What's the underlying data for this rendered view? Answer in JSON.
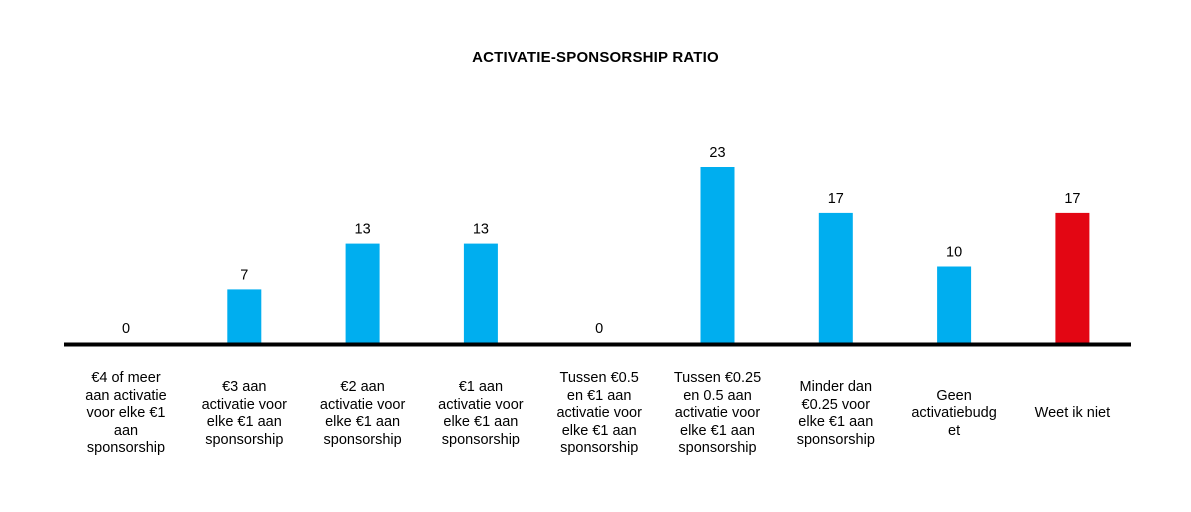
{
  "chart_data": {
    "type": "bar",
    "title": "ACTIVATIE-SPONSORSHIP RATIO",
    "xlabel": "",
    "ylabel": "",
    "ylim": [
      0,
      30
    ],
    "grid": false,
    "legend": "none",
    "categories": [
      "€4 of meer aan activatie voor elke €1 aan sponsorship",
      "€3 aan activatie voor elke €1 aan sponsorship",
      "€2 aan activatie voor elke €1 aan sponsorship",
      "€1 aan activatie voor elke €1 aan sponsorship",
      "Tussen €0.5 en €1 aan activatie voor elke €1 aan sponsorship",
      "Tussen €0.25 en 0.5 aan activatie voor elke €1 aan sponsorship",
      "Minder dan €0.25 voor elke €1 aan sponsorship",
      "Geen activatiebudget",
      "Weet ik niet"
    ],
    "category_lines": [
      [
        "€4 of meer",
        "aan activatie",
        "voor elke €1",
        "aan",
        "sponsorship"
      ],
      [
        "€3 aan",
        "activatie voor",
        "elke €1 aan",
        "sponsorship"
      ],
      [
        "€2 aan",
        "activatie voor",
        "elke €1 aan",
        "sponsorship"
      ],
      [
        "€1 aan",
        "activatie voor",
        "elke €1 aan",
        "sponsorship"
      ],
      [
        "Tussen €0.5",
        "en €1 aan",
        "activatie voor",
        "elke €1 aan",
        "sponsorship"
      ],
      [
        "Tussen €0.25",
        "en 0.5 aan",
        "activatie voor",
        "elke €1 aan",
        "sponsorship"
      ],
      [
        "Minder dan",
        "€0.25 voor",
        "elke €1 aan",
        "sponsorship"
      ],
      [
        "Geen",
        "activatiebudg",
        "et"
      ],
      [
        "Weet ik niet"
      ]
    ],
    "values": [
      0,
      7,
      13,
      13,
      0,
      23,
      17,
      10,
      17
    ],
    "colors": [
      "#00AEEF",
      "#00AEEF",
      "#00AEEF",
      "#00AEEF",
      "#00AEEF",
      "#00AEEF",
      "#00AEEF",
      "#00AEEF",
      "#E30613"
    ]
  }
}
